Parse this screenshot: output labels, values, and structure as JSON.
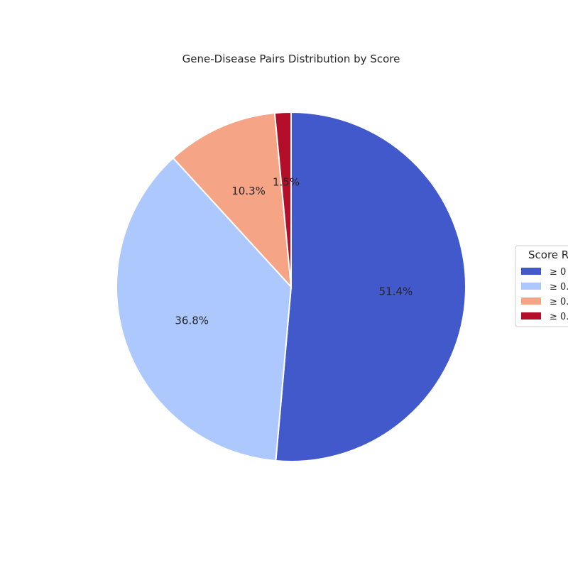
{
  "chart_data": {
    "type": "pie",
    "title": "Gene-Disease Pairs Distribution by Score",
    "start_angle_deg": 90,
    "direction": "clockwise",
    "slices": [
      {
        "label": "≥ 0",
        "value": 51.4,
        "pct_label": "51.4%",
        "color": "#4259cb"
      },
      {
        "label": "≥ 0.",
        "value": 36.8,
        "pct_label": "36.8%",
        "color": "#adc8fc"
      },
      {
        "label": "≥ 0.",
        "value": 10.3,
        "pct_label": "10.3%",
        "color": "#f5a586"
      },
      {
        "label": "≥ 0.",
        "value": 1.5,
        "pct_label": "1.5%",
        "color": "#b30f2b"
      }
    ],
    "legend": {
      "title": "Score R",
      "placement": "right"
    }
  }
}
